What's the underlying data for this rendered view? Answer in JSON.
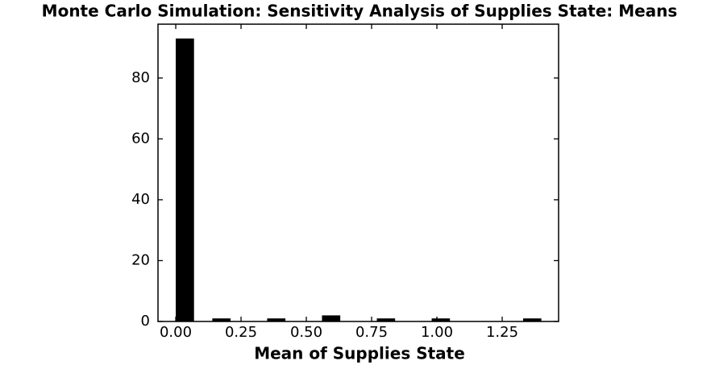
{
  "chart_data": {
    "type": "histogram",
    "title": "Monte Carlo Simulation: Sensitivity Analysis of Supplies State: Means",
    "x_label": "Mean of Supplies State",
    "bins": [
      0,
      0.07,
      0.14,
      0.21,
      0.28,
      0.35,
      0.42,
      0.49,
      0.56,
      0.63,
      0.7,
      0.77,
      0.84,
      0.91,
      0.98,
      1.05,
      1.12,
      1.19,
      1.26,
      1.33,
      1.4
    ],
    "values": [
      93,
      0,
      1,
      0,
      0,
      1,
      0,
      0,
      2,
      0,
      0,
      1,
      0,
      0,
      1,
      0,
      0,
      0,
      0,
      1
    ],
    "color": "#000000",
    "xlim": [
      -0.068,
      1.466
    ],
    "ylim": [
      0,
      97.7
    ],
    "xticks": [
      {
        "value": 0,
        "label": "0.00"
      },
      {
        "value": 0.25,
        "label": "0.25"
      },
      {
        "value": 0.5,
        "label": "0.50"
      },
      {
        "value": 0.75,
        "label": "0.75"
      },
      {
        "value": 1,
        "label": "1.00"
      },
      {
        "value": 1.25,
        "label": "1.25"
      }
    ],
    "yticks": [
      0,
      20,
      40,
      60,
      80
    ],
    "grid": false
  }
}
